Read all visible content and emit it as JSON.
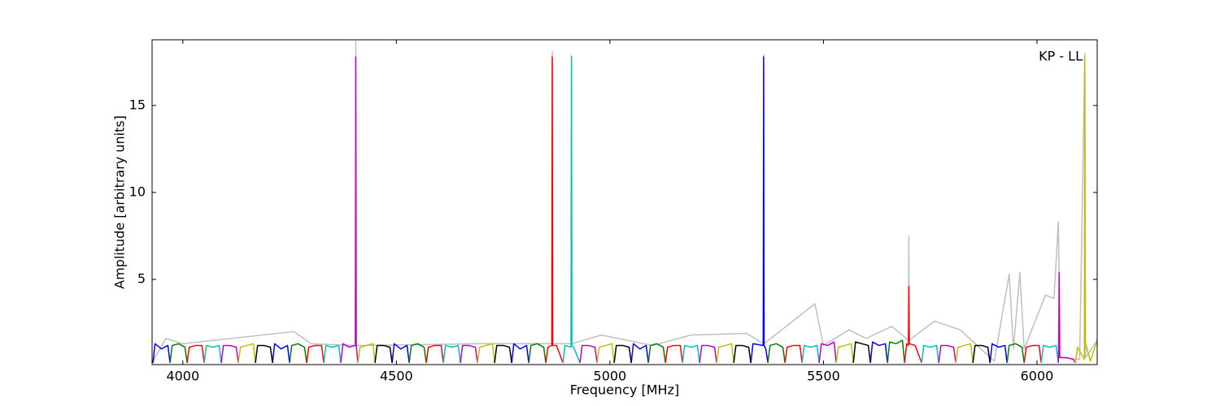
{
  "chart_data": {
    "type": "line",
    "x_label": "Frequency [MHz]",
    "y_label": "Amplitude [arbitrary units]",
    "annotation": "KP - LL",
    "xlim": [
      3928,
      6141
    ],
    "ylim": [
      0.1,
      18.78
    ],
    "xticks": [
      4000,
      4500,
      5000,
      5500,
      6000
    ],
    "yticks": [
      5,
      10,
      15
    ],
    "grid": false,
    "series": [
      {
        "color": "#bfbfbf",
        "x": [
          3930,
          3960,
          4000,
          4260,
          4300,
          4404,
          4405,
          4406,
          4700,
          4864,
          4865,
          4866,
          4909,
          4910,
          4911,
          4980,
          5100,
          5190,
          5320,
          5359,
          5360,
          5361,
          5480,
          5500,
          5560,
          5600,
          5660,
          5699,
          5700,
          5701,
          5760,
          5820,
          5900,
          5935,
          5945,
          5960,
          5970,
          6020,
          6040,
          6050,
          6055,
          6100,
          6112,
          6114,
          6141
        ],
        "values": [
          0.3,
          1.6,
          1.3,
          2.0,
          1.3,
          1.2,
          18.7,
          1.2,
          1.3,
          1.3,
          18.1,
          1.3,
          1.3,
          17.9,
          1.3,
          1.8,
          1.2,
          1.8,
          1.9,
          1.3,
          17.9,
          1.3,
          3.6,
          1.2,
          2.1,
          1.6,
          2.3,
          1.5,
          7.5,
          1.5,
          2.6,
          2.1,
          0.3,
          5.3,
          1.0,
          5.4,
          1.0,
          4.1,
          3.9,
          8.3,
          0.5,
          0.4,
          18.0,
          0.5,
          1.5
        ]
      },
      {
        "color": "#0000ff",
        "x": [
          3930,
          3935,
          3950,
          3965,
          3970,
          null,
          4210,
          4215,
          4230,
          4245,
          4250,
          null,
          4490,
          4495,
          4510,
          4525,
          4530,
          null,
          4770,
          4775,
          4790,
          4805,
          4810,
          null,
          5050,
          5055,
          5070,
          5085,
          5090,
          null,
          5330,
          5335,
          5359,
          5360,
          5361,
          5365,
          5370,
          null,
          5610,
          5615,
          5630,
          5645,
          5650,
          null,
          5890,
          5895,
          5910,
          5925,
          5930
        ],
        "values": [
          0.2,
          1.3,
          1.0,
          1.2,
          0.2,
          null,
          0.2,
          1.3,
          1.0,
          1.2,
          0.2,
          null,
          0.2,
          1.3,
          1.0,
          1.2,
          0.2,
          null,
          0.2,
          1.3,
          1.0,
          1.2,
          0.2,
          null,
          0.2,
          1.3,
          1.0,
          1.2,
          0.2,
          null,
          0.2,
          1.3,
          1.2,
          17.8,
          1.2,
          1.0,
          0.2,
          null,
          0.2,
          1.4,
          1.2,
          1.3,
          0.2,
          null,
          0.2,
          1.3,
          1.1,
          1.2,
          0.2
        ]
      },
      {
        "color": "#008000",
        "x": [
          3970,
          3975,
          3990,
          4005,
          4010,
          null,
          4250,
          4255,
          4270,
          4285,
          4290,
          null,
          4530,
          4535,
          4550,
          4565,
          4570,
          null,
          4810,
          4815,
          4830,
          4845,
          4850,
          null,
          5090,
          5095,
          5110,
          5125,
          5130,
          null,
          5370,
          5375,
          5390,
          5405,
          5410,
          null,
          5650,
          5655,
          5670,
          5685,
          5690,
          null,
          5930,
          5935,
          5950,
          5965,
          5970
        ],
        "values": [
          0.2,
          1.2,
          1.3,
          1.1,
          0.2,
          null,
          0.2,
          1.2,
          1.3,
          1.1,
          0.2,
          null,
          0.2,
          1.2,
          1.3,
          1.1,
          0.2,
          null,
          0.2,
          1.2,
          1.3,
          1.1,
          0.2,
          null,
          0.2,
          1.2,
          1.3,
          1.1,
          0.2,
          null,
          0.2,
          1.2,
          1.3,
          1.1,
          0.2,
          null,
          0.2,
          1.4,
          1.3,
          1.5,
          0.2,
          null,
          0.2,
          1.2,
          1.3,
          1.1,
          0.2
        ]
      },
      {
        "color": "#ff0000",
        "x": [
          4010,
          4015,
          4030,
          4045,
          4050,
          null,
          4290,
          4295,
          4310,
          4325,
          4330,
          null,
          4570,
          4575,
          4590,
          4605,
          4610,
          null,
          4850,
          4855,
          4864,
          4865,
          4866,
          4875,
          4890,
          null,
          5130,
          5135,
          5150,
          5165,
          5170,
          null,
          5410,
          5415,
          5430,
          5445,
          5450,
          null,
          5690,
          5695,
          5699,
          5700,
          5701,
          5715,
          5730,
          null,
          5970,
          5975,
          5990,
          6005,
          6010
        ],
        "values": [
          0.2,
          1.1,
          1.2,
          1.2,
          0.2,
          null,
          0.2,
          1.1,
          1.2,
          1.2,
          0.2,
          null,
          0.2,
          1.1,
          1.2,
          1.2,
          0.2,
          null,
          0.2,
          1.1,
          1.2,
          17.8,
          1.2,
          1.2,
          0.2,
          null,
          0.2,
          1.1,
          1.2,
          1.2,
          0.2,
          null,
          0.2,
          1.1,
          1.2,
          1.2,
          0.2,
          null,
          0.2,
          1.3,
          1.2,
          4.6,
          1.3,
          1.2,
          0.2,
          null,
          0.2,
          1.1,
          1.2,
          1.2,
          0.2
        ]
      },
      {
        "color": "#00bfbf",
        "x": [
          4050,
          4055,
          4070,
          4085,
          4090,
          null,
          4330,
          4335,
          4350,
          4365,
          4370,
          null,
          4610,
          4615,
          4630,
          4645,
          4650,
          null,
          4890,
          4895,
          4909,
          4910,
          4911,
          4915,
          4930,
          null,
          5170,
          5175,
          5190,
          5205,
          5210,
          null,
          5450,
          5455,
          5470,
          5485,
          5490,
          null,
          5730,
          5735,
          5750,
          5765,
          5770,
          null,
          6010,
          6015,
          6030,
          6045,
          6050
        ],
        "values": [
          0.2,
          1.2,
          1.1,
          1.2,
          0.2,
          null,
          0.2,
          1.2,
          1.1,
          1.2,
          0.2,
          null,
          0.2,
          1.2,
          1.1,
          1.2,
          0.2,
          null,
          0.2,
          1.2,
          1.1,
          17.8,
          1.2,
          1.1,
          0.2,
          null,
          0.2,
          1.2,
          1.1,
          1.2,
          0.2,
          null,
          0.2,
          1.2,
          1.1,
          1.2,
          0.2,
          null,
          0.2,
          1.2,
          1.1,
          1.2,
          0.2,
          null,
          0.2,
          1.2,
          1.1,
          1.2,
          0.2
        ]
      },
      {
        "color": "#bf00bf",
        "x": [
          4090,
          4095,
          4110,
          4125,
          4130,
          null,
          4370,
          4375,
          4390,
          4404,
          4405,
          4406,
          4410,
          null,
          4650,
          4655,
          4670,
          4685,
          4690,
          null,
          4930,
          4935,
          4950,
          4965,
          4970,
          null,
          5210,
          5215,
          5230,
          5245,
          5250,
          null,
          5490,
          5495,
          5510,
          5525,
          5530,
          null,
          5770,
          5775,
          5790,
          5805,
          5810,
          null,
          6050,
          6051,
          6052,
          6053,
          6070,
          6085,
          6090
        ],
        "values": [
          0.2,
          1.2,
          1.2,
          1.1,
          0.2,
          null,
          0.2,
          1.3,
          1.1,
          1.2,
          17.8,
          1.2,
          0.2,
          null,
          0.2,
          1.2,
          1.2,
          1.1,
          0.2,
          null,
          0.2,
          1.2,
          1.2,
          1.1,
          0.2,
          null,
          0.2,
          1.2,
          1.2,
          1.1,
          0.2,
          null,
          0.2,
          1.3,
          1.2,
          1.4,
          0.2,
          null,
          0.2,
          1.2,
          1.2,
          1.1,
          0.2,
          null,
          0.2,
          1.5,
          5.4,
          0.5,
          0.5,
          0.4,
          0.2
        ]
      },
      {
        "color": "#bfbf00",
        "x": [
          4130,
          4135,
          4150,
          4165,
          4170,
          null,
          4410,
          4415,
          4430,
          4445,
          4450,
          null,
          4690,
          4695,
          4710,
          4725,
          4730,
          null,
          4970,
          4975,
          4990,
          5005,
          5010,
          null,
          5250,
          5255,
          5270,
          5285,
          5290,
          null,
          5530,
          5535,
          5550,
          5565,
          5570,
          null,
          5810,
          5815,
          5830,
          5845,
          5850,
          null,
          6090,
          6095,
          6111,
          6112,
          6113,
          6125,
          6141
        ],
        "values": [
          0.2,
          1.1,
          1.2,
          1.3,
          0.2,
          null,
          0.2,
          1.1,
          1.2,
          1.3,
          0.2,
          null,
          0.2,
          1.1,
          1.2,
          1.3,
          0.2,
          null,
          0.2,
          1.1,
          1.2,
          1.3,
          0.2,
          null,
          0.2,
          1.1,
          1.2,
          1.3,
          0.2,
          null,
          0.2,
          1.1,
          1.2,
          1.3,
          0.2,
          null,
          0.2,
          1.1,
          1.2,
          1.3,
          0.2,
          null,
          0.2,
          1.1,
          0.4,
          17.8,
          1.4,
          0.3,
          1.5
        ]
      },
      {
        "color": "#000000",
        "x": [
          4170,
          4175,
          4190,
          4205,
          4210,
          null,
          4450,
          4455,
          4470,
          4485,
          4490,
          null,
          4730,
          4735,
          4750,
          4765,
          4770,
          null,
          5010,
          5015,
          5030,
          5045,
          5050,
          null,
          5290,
          5295,
          5310,
          5325,
          5330,
          null,
          5570,
          5575,
          5590,
          5605,
          5610,
          null,
          5850,
          5855,
          5870,
          5885,
          5890
        ],
        "values": [
          0.2,
          1.2,
          1.2,
          1.1,
          0.2,
          null,
          0.2,
          1.2,
          1.2,
          1.1,
          0.2,
          null,
          0.2,
          1.2,
          1.2,
          1.1,
          0.2,
          null,
          0.2,
          1.2,
          1.2,
          1.1,
          0.2,
          null,
          0.2,
          1.2,
          1.2,
          1.1,
          0.2,
          null,
          0.2,
          1.4,
          1.3,
          1.2,
          0.2,
          null,
          0.2,
          1.2,
          1.2,
          1.1,
          0.2
        ]
      }
    ]
  }
}
